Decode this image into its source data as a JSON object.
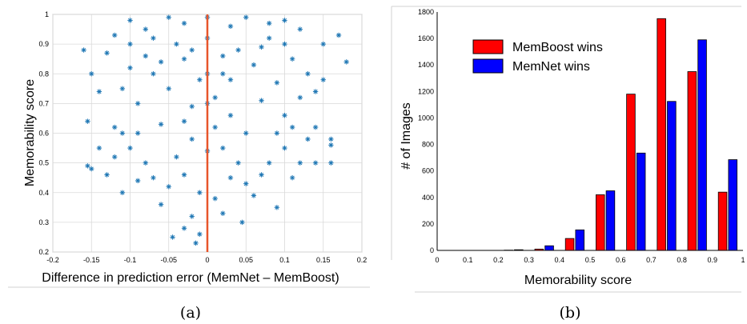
{
  "captions": {
    "left": "(a)",
    "right": "(b)"
  },
  "colors": {
    "scatter_points": "#1f77b4",
    "zero_line": "#e8552a",
    "memboost": "#ff0000",
    "memnet": "#0000ff",
    "grid": "#d9d9d9"
  },
  "chart_data": [
    {
      "type": "scatter",
      "xlabel": "Difference in prediction error (MemNet – MemBoost)",
      "ylabel": "Memorability score",
      "xlim": [
        -0.2,
        0.2
      ],
      "ylim": [
        0.2,
        1.0
      ],
      "x_ticks": [
        -0.2,
        -0.15,
        -0.1,
        -0.05,
        0,
        0.05,
        0.1,
        0.15,
        0.2
      ],
      "y_ticks": [
        0.2,
        0.3,
        0.4,
        0.5,
        0.6,
        0.7,
        0.8,
        0.9,
        1
      ],
      "grid": true,
      "marker": "asterisk",
      "reference_line": {
        "x": 0
      },
      "points": [
        [
          -0.01,
          0.78
        ],
        [
          0.02,
          0.8
        ],
        [
          -0.03,
          0.85
        ],
        [
          0.01,
          0.72
        ],
        [
          -0.02,
          0.69
        ],
        [
          0.04,
          0.88
        ],
        [
          -0.05,
          0.75
        ],
        [
          0.03,
          0.66
        ],
        [
          -0.04,
          0.9
        ],
        [
          0.06,
          0.83
        ],
        [
          -0.07,
          0.8
        ],
        [
          0.07,
          0.71
        ],
        [
          -0.06,
          0.63
        ],
        [
          0.05,
          0.6
        ],
        [
          -0.08,
          0.86
        ],
        [
          0.08,
          0.92
        ],
        [
          -0.09,
          0.7
        ],
        [
          0.09,
          0.77
        ],
        [
          -0.1,
          0.82
        ],
        [
          0.1,
          0.66
        ],
        [
          -0.11,
          0.75
        ],
        [
          0.11,
          0.85
        ],
        [
          -0.12,
          0.62
        ],
        [
          0.12,
          0.72
        ],
        [
          -0.13,
          0.87
        ],
        [
          0.13,
          0.8
        ],
        [
          -0.14,
          0.55
        ],
        [
          0.14,
          0.62
        ],
        [
          -0.15,
          0.48
        ],
        [
          0.15,
          0.9
        ],
        [
          -0.16,
          0.88
        ],
        [
          0.18,
          0.84
        ],
        [
          0.17,
          0.93
        ],
        [
          -0.155,
          0.64
        ],
        [
          0.16,
          0.56
        ],
        [
          -0.02,
          0.58
        ],
        [
          0.02,
          0.55
        ],
        [
          -0.04,
          0.52
        ],
        [
          0.04,
          0.5
        ],
        [
          0.0,
          0.54
        ],
        [
          -0.03,
          0.46
        ],
        [
          0.03,
          0.45
        ],
        [
          -0.05,
          0.42
        ],
        [
          0.05,
          0.43
        ],
        [
          -0.01,
          0.4
        ],
        [
          0.01,
          0.38
        ],
        [
          -0.06,
          0.36
        ],
        [
          0.06,
          0.39
        ],
        [
          -0.02,
          0.32
        ],
        [
          0.02,
          0.33
        ],
        [
          -0.03,
          0.28
        ],
        [
          -0.01,
          0.26
        ],
        [
          -0.015,
          0.23
        ],
        [
          -0.045,
          0.25
        ],
        [
          0.045,
          0.3
        ],
        [
          -0.09,
          0.44
        ],
        [
          0.09,
          0.35
        ],
        [
          -0.11,
          0.4
        ],
        [
          0.11,
          0.45
        ],
        [
          -0.12,
          0.52
        ],
        [
          0.12,
          0.5
        ],
        [
          0.13,
          0.58
        ],
        [
          -0.13,
          0.46
        ],
        [
          0.14,
          0.5
        ],
        [
          0.16,
          0.58
        ],
        [
          -0.05,
          0.99
        ],
        [
          0.0,
          0.99
        ],
        [
          0.05,
          0.99
        ],
        [
          -0.1,
          0.98
        ],
        [
          0.1,
          0.98
        ],
        [
          -0.03,
          0.97
        ],
        [
          0.03,
          0.96
        ],
        [
          -0.08,
          0.95
        ],
        [
          0.08,
          0.97
        ],
        [
          0.12,
          0.95
        ],
        [
          -0.12,
          0.93
        ],
        [
          0.0,
          0.92
        ],
        [
          -0.07,
          0.92
        ],
        [
          0.07,
          0.89
        ],
        [
          -0.1,
          0.9
        ],
        [
          0.1,
          0.9
        ],
        [
          -0.02,
          0.88
        ],
        [
          0.02,
          0.86
        ],
        [
          0.0,
          0.8
        ],
        [
          0.0,
          0.7
        ],
        [
          -0.09,
          0.6
        ],
        [
          0.09,
          0.6
        ],
        [
          -0.1,
          0.55
        ],
        [
          0.1,
          0.55
        ],
        [
          -0.08,
          0.5
        ],
        [
          0.08,
          0.5
        ],
        [
          -0.07,
          0.45
        ],
        [
          0.07,
          0.46
        ],
        [
          -0.14,
          0.74
        ],
        [
          0.14,
          0.74
        ],
        [
          -0.15,
          0.8
        ],
        [
          0.15,
          0.78
        ],
        [
          -0.155,
          0.49
        ],
        [
          0.16,
          0.5
        ],
        [
          -0.11,
          0.6
        ],
        [
          0.11,
          0.62
        ],
        [
          0.01,
          0.62
        ],
        [
          -0.03,
          0.64
        ],
        [
          0.03,
          0.78
        ],
        [
          -0.06,
          0.84
        ]
      ]
    },
    {
      "type": "bar",
      "xlabel": "Memorability score",
      "ylabel": "# of Images",
      "xlim": [
        0,
        1
      ],
      "ylim": [
        0,
        1800
      ],
      "x_ticks": [
        0,
        0.1,
        0.2,
        0.3,
        0.4,
        0.5,
        0.6,
        0.7,
        0.8,
        0.9,
        1
      ],
      "y_ticks": [
        0,
        200,
        400,
        600,
        800,
        1000,
        1200,
        1400,
        1600,
        1800
      ],
      "grid": false,
      "legend_position": "top-left",
      "categories": [
        0.05,
        0.15,
        0.25,
        0.35,
        0.45,
        0.55,
        0.65,
        0.75,
        0.85,
        0.95
      ],
      "series": [
        {
          "name": "MemBoost wins",
          "color": "#ff0000",
          "values": [
            0,
            0,
            2,
            10,
            90,
            420,
            1180,
            1750,
            1350,
            440
          ]
        },
        {
          "name": "MemNet wins",
          "color": "#0000ff",
          "values": [
            0,
            0,
            5,
            35,
            155,
            450,
            735,
            1125,
            1590,
            685
          ]
        }
      ]
    }
  ]
}
